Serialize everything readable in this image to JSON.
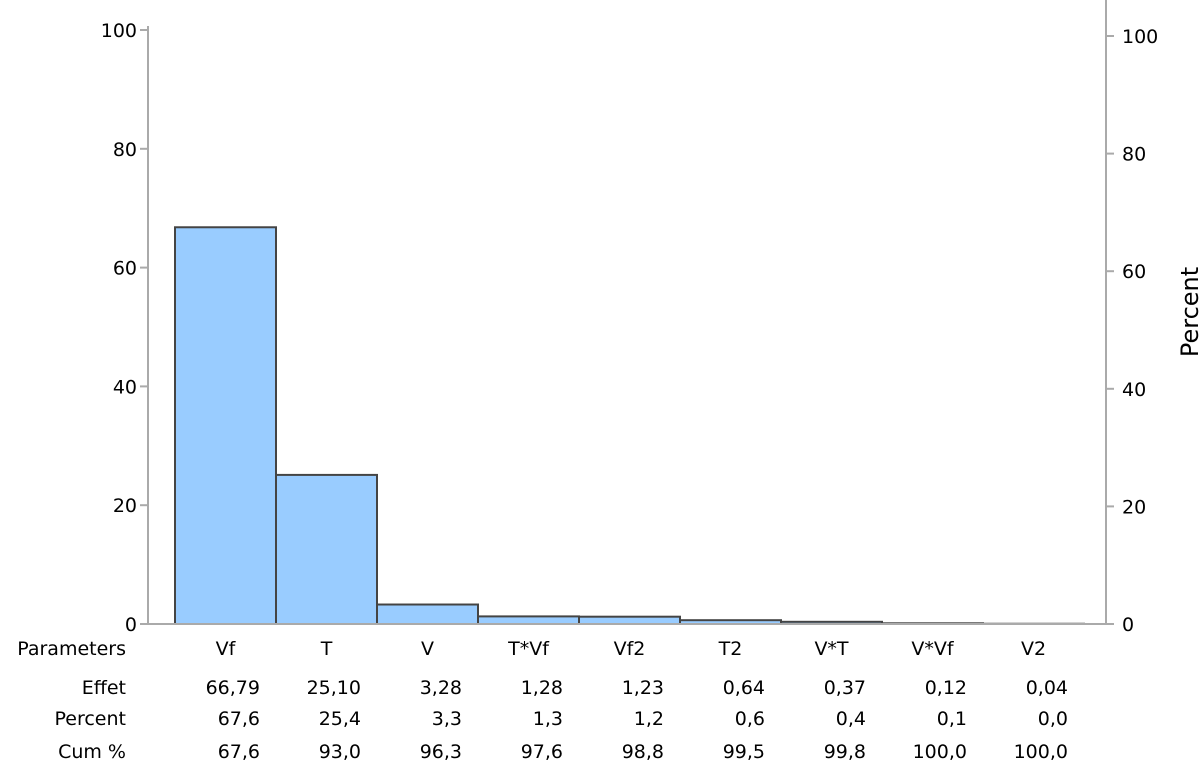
{
  "chart_data": {
    "type": "bar",
    "categories": [
      "Vf",
      "T",
      "V",
      "T*Vf",
      "Vf2",
      "T2",
      "V*T",
      "V*Vf",
      "V2"
    ],
    "values": [
      66.79,
      25.1,
      3.28,
      1.28,
      1.23,
      0.64,
      0.37,
      0.12,
      0.04
    ],
    "ylim": [
      0,
      100
    ],
    "yticks": [
      "0",
      "20",
      "40",
      "60",
      "80",
      "100"
    ],
    "y2label": "Percent",
    "y2lim": [
      0,
      100
    ],
    "y2ticks": [
      "0",
      "20",
      "40",
      "60",
      "80",
      "100"
    ],
    "colors": {
      "bar_fill": "#99ccff",
      "bar_stroke": "#444444",
      "axis": "#aaaaaa"
    },
    "table": {
      "rows": [
        {
          "label": "Parameters",
          "cells": [
            "Vf",
            "T",
            "V",
            "T*Vf",
            "Vf2",
            "T2",
            "V*T",
            "V*Vf",
            "V2"
          ]
        },
        {
          "label": "Effet",
          "cells": [
            "66,79",
            "25,10",
            "3,28",
            "1,28",
            "1,23",
            "0,64",
            "0,37",
            "0,12",
            "0,04"
          ]
        },
        {
          "label": "Percent",
          "cells": [
            "67,6",
            "25,4",
            "3,3",
            "1,3",
            "1,2",
            "0,6",
            "0,4",
            "0,1",
            "0,0"
          ]
        },
        {
          "label": "Cum %",
          "cells": [
            "67,6",
            "93,0",
            "96,3",
            "97,6",
            "98,8",
            "99,5",
            "99,8",
            "100,0",
            "100,0"
          ]
        }
      ]
    }
  }
}
